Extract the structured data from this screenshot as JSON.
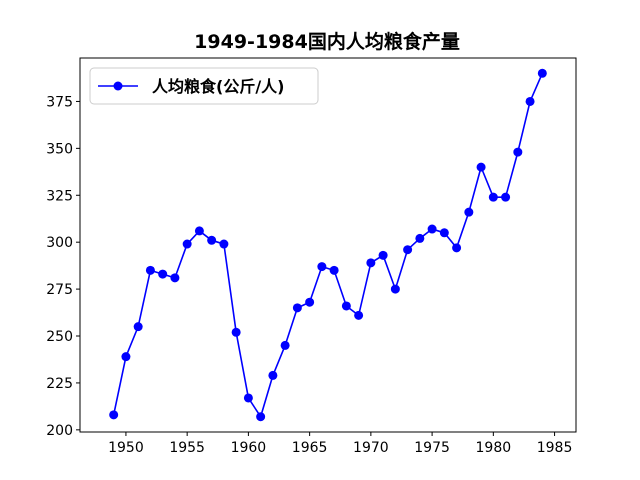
{
  "chart_data": {
    "type": "line",
    "title": "1949-1984国内人均粮食产量",
    "xlabel": "",
    "ylabel": "",
    "x": [
      1949,
      1950,
      1951,
      1952,
      1953,
      1954,
      1955,
      1956,
      1957,
      1958,
      1959,
      1960,
      1961,
      1962,
      1963,
      1964,
      1965,
      1966,
      1967,
      1968,
      1969,
      1970,
      1971,
      1972,
      1973,
      1974,
      1975,
      1976,
      1977,
      1978,
      1979,
      1980,
      1981,
      1982,
      1983,
      1984
    ],
    "series": [
      {
        "name": "人均粮食(公斤/人)",
        "color": "#0000ff",
        "marker": "circle",
        "values": [
          208,
          239,
          255,
          285,
          283,
          281,
          299,
          306,
          301,
          299,
          252,
          217,
          207,
          229,
          245,
          265,
          268,
          287,
          285,
          266,
          261,
          289,
          293,
          275,
          296,
          302,
          307,
          305,
          297,
          316,
          340,
          324,
          324,
          348,
          375,
          390
        ]
      }
    ],
    "xlim": [
      1946.25,
      1986.75
    ],
    "ylim": [
      198.85,
      398.15
    ],
    "xticks": [
      1950,
      1955,
      1960,
      1965,
      1970,
      1975,
      1980,
      1985
    ],
    "yticks": [
      200,
      225,
      250,
      275,
      300,
      325,
      350,
      375
    ],
    "grid": false,
    "legend": "top-left"
  }
}
